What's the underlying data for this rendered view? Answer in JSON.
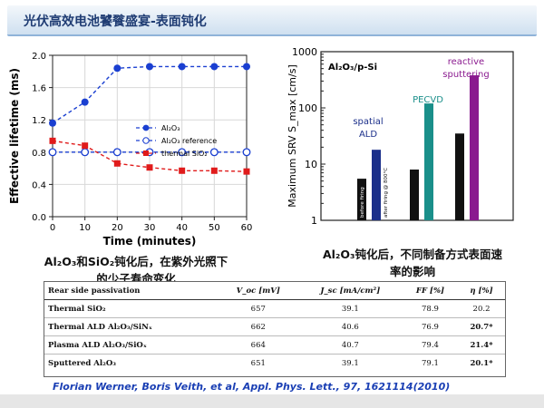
{
  "page": {
    "title": "光伏高效电池饕餮盛宴-表面钝化",
    "caption_left_line1": "Al₂O₃和SiO₂钝化后，在紫外光照下",
    "caption_left_line2": "的少子寿命变化",
    "caption_right_line1": "Al₂O₃钝化后，不同制备方式表面速",
    "caption_right_line2": "率的影响",
    "reference": "Florian Werner, Boris Veith, et al, Appl. Phys. Lett., 97, 1621114(2010)"
  },
  "colors": {
    "title_text": "#1f3c73",
    "al2o3": "#1a3fd1",
    "reference_series": "#1a3fd1",
    "sio2": "#e01b1b",
    "spatial_ald": "#1b2f8a",
    "pecvd": "#1a8f8a",
    "reactive_sputtering": "#8a1a8f",
    "before_firing": "#111111"
  },
  "chart_data": [
    {
      "type": "line",
      "xlabel": "Time (minutes)",
      "ylabel": "Effective lifetime (ms)",
      "xlim": [
        0,
        60
      ],
      "ylim": [
        0.0,
        2.0
      ],
      "xticks": [
        0,
        10,
        20,
        30,
        40,
        50,
        60
      ],
      "yticks": [
        0.0,
        0.4,
        0.8,
        1.2,
        1.6,
        2.0
      ],
      "legend_position": "middle-right",
      "series": [
        {
          "name": "Al₂O₃",
          "x": [
            0,
            10,
            20,
            30,
            40,
            50,
            60
          ],
          "y": [
            1.16,
            1.42,
            1.84,
            1.86,
            1.86,
            1.86,
            1.86
          ]
        },
        {
          "name": "Al₂O₃ reference",
          "x": [
            0,
            10,
            20,
            30,
            40,
            50,
            60
          ],
          "y": [
            0.8,
            0.8,
            0.8,
            0.8,
            0.8,
            0.8,
            0.8
          ]
        },
        {
          "name": "thermal SiO₂",
          "x": [
            0,
            10,
            20,
            30,
            40,
            50,
            60
          ],
          "y": [
            0.94,
            0.88,
            0.66,
            0.61,
            0.57,
            0.57,
            0.56
          ]
        }
      ]
    },
    {
      "type": "bar",
      "ylabel": "Maximum SRV S_max [cm/s]",
      "yscale": "log",
      "ylim": [
        1,
        1000
      ],
      "yticks": [
        1,
        10,
        100,
        1000
      ],
      "panel_label": "Al₂O₃/p-Si",
      "bars": [
        {
          "group": "spatial ALD",
          "label": "before firing",
          "value": 5.5
        },
        {
          "group": "spatial ALD",
          "label": "after firing @ 800°C",
          "value": 18
        },
        {
          "group": "PECVD",
          "label": "",
          "value": 8
        },
        {
          "group": "PECVD",
          "label": "",
          "value": 120
        },
        {
          "group": "reactive sputtering",
          "label": "",
          "value": 35
        },
        {
          "group": "reactive sputtering",
          "label": "",
          "value": 380
        }
      ],
      "group_labels": [
        "spatial ALD",
        "PECVD",
        "reactive sputtering"
      ]
    }
  ],
  "table": {
    "headers": [
      "Rear side passivation",
      "V_oc [mV]",
      "J_sc [mA/cm²]",
      "FF [%]",
      "η [%]"
    ],
    "rows": [
      {
        "cells": [
          "Thermal SiO₂",
          "657",
          "39.1",
          "78.9",
          "20.2"
        ],
        "bold_last": false
      },
      {
        "cells": [
          "Thermal ALD Al₂O₃/SiNₓ",
          "662",
          "40.6",
          "76.9",
          "20.7*"
        ],
        "bold_last": true
      },
      {
        "cells": [
          "Plasma ALD Al₂O₃/SiOₓ",
          "664",
          "40.7",
          "79.4",
          "21.4*"
        ],
        "bold_last": true
      },
      {
        "cells": [
          "Sputtered Al₂O₃",
          "651",
          "39.1",
          "79.1",
          "20.1*"
        ],
        "bold_last": true
      }
    ]
  }
}
